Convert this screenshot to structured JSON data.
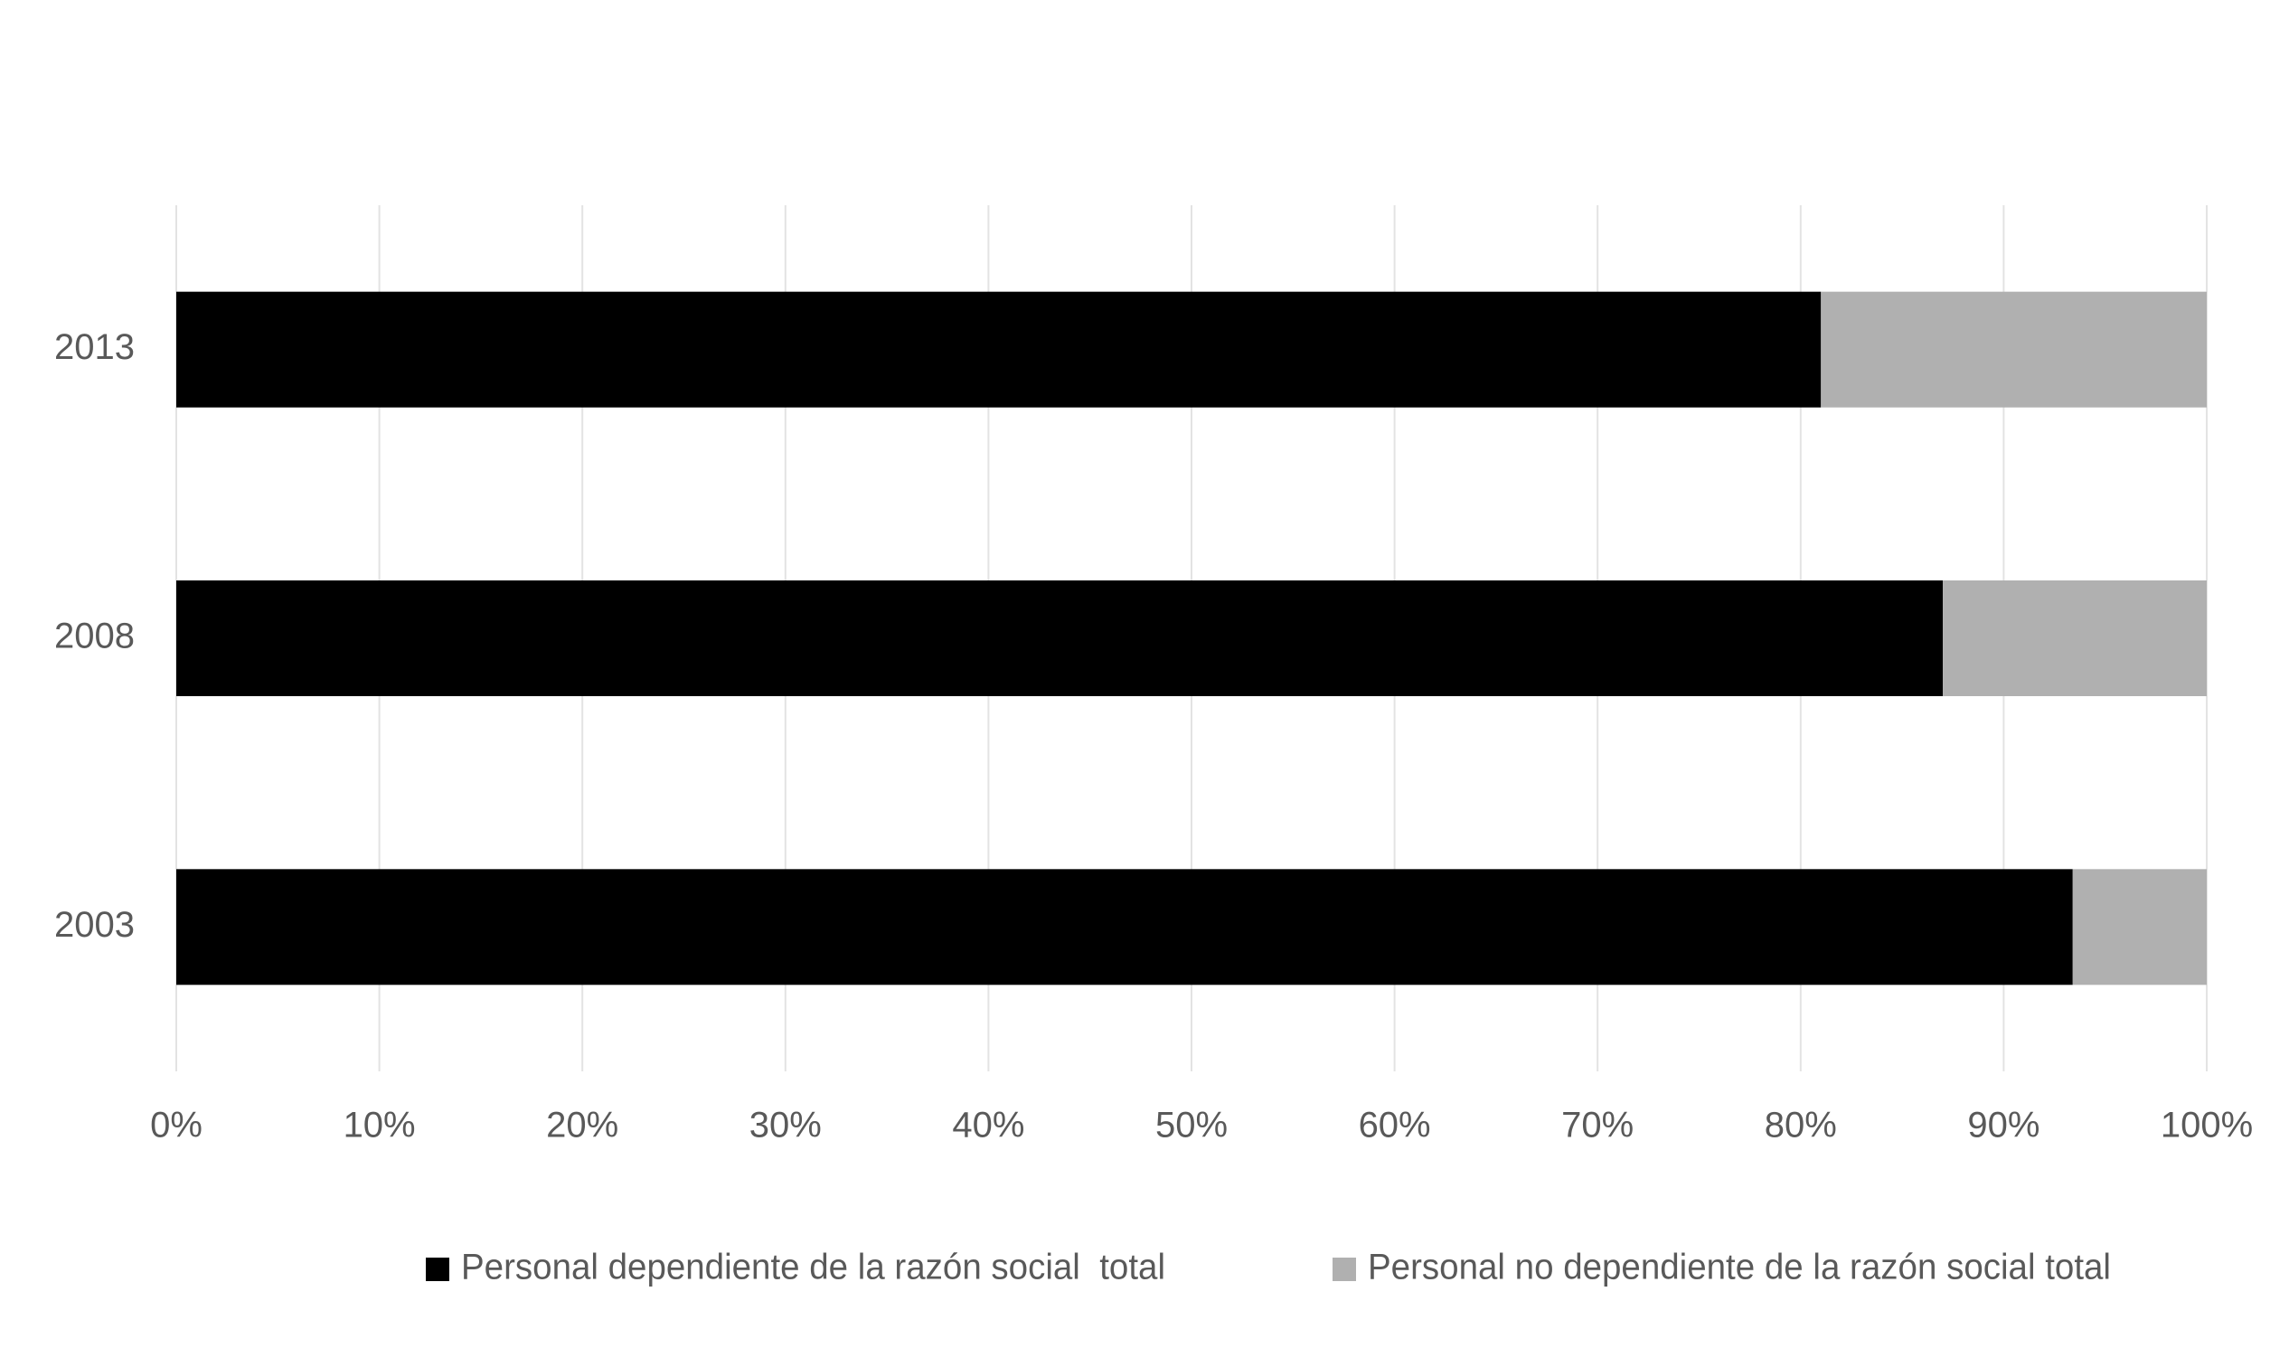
{
  "chart_data": {
    "type": "stacked-bar-horizontal",
    "categories": [
      "2003",
      "2008",
      "2013"
    ],
    "series": [
      {
        "name": "Personal dependiente de la razón social  total",
        "color": "#000000",
        "values": [
          93.4,
          87,
          81
        ]
      },
      {
        "name": "Personal no dependiente de la razón social total",
        "color": "#b0b0b0",
        "values": [
          6.6,
          13,
          19
        ]
      }
    ],
    "xlim": [
      0,
      100
    ],
    "xticks": [
      {
        "value": 0,
        "label": "0%"
      },
      {
        "value": 10,
        "label": "10%"
      },
      {
        "value": 20,
        "label": "20%"
      },
      {
        "value": 30,
        "label": "30%"
      },
      {
        "value": 40,
        "label": "40%"
      },
      {
        "value": 50,
        "label": "50%"
      },
      {
        "value": 60,
        "label": "60%"
      },
      {
        "value": 70,
        "label": "70%"
      },
      {
        "value": 80,
        "label": "80%"
      },
      {
        "value": 90,
        "label": "90%"
      },
      {
        "value": 100,
        "label": "100%"
      }
    ],
    "grid": true,
    "legend": "bottom"
  }
}
